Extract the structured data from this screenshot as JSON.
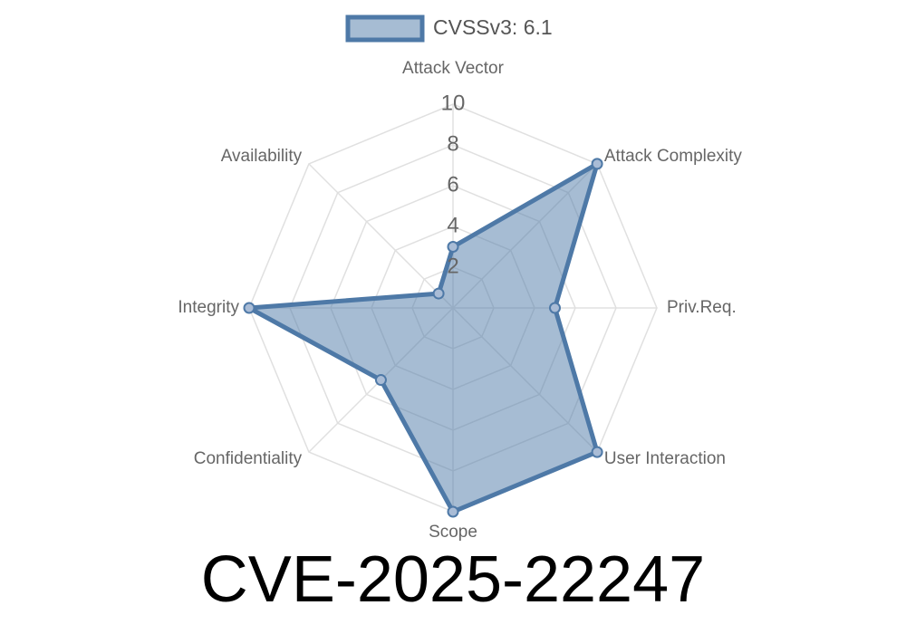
{
  "chart_data": {
    "type": "radar",
    "title": "CVE-2025-22247",
    "categories": [
      "Attack Vector",
      "Attack Complexity",
      "Priv.Req.",
      "User Interaction",
      "Scope",
      "Confidentiality",
      "Integrity",
      "Availability"
    ],
    "series": [
      {
        "name": "CVSSv3: 6.1",
        "color": "#4e79a7",
        "values": [
          3,
          10,
          5,
          10,
          10,
          5,
          10,
          1
        ]
      }
    ],
    "ylim": [
      0,
      10
    ],
    "yticks": [
      2,
      4,
      6,
      8,
      10
    ],
    "grid": true,
    "legend": "top"
  }
}
